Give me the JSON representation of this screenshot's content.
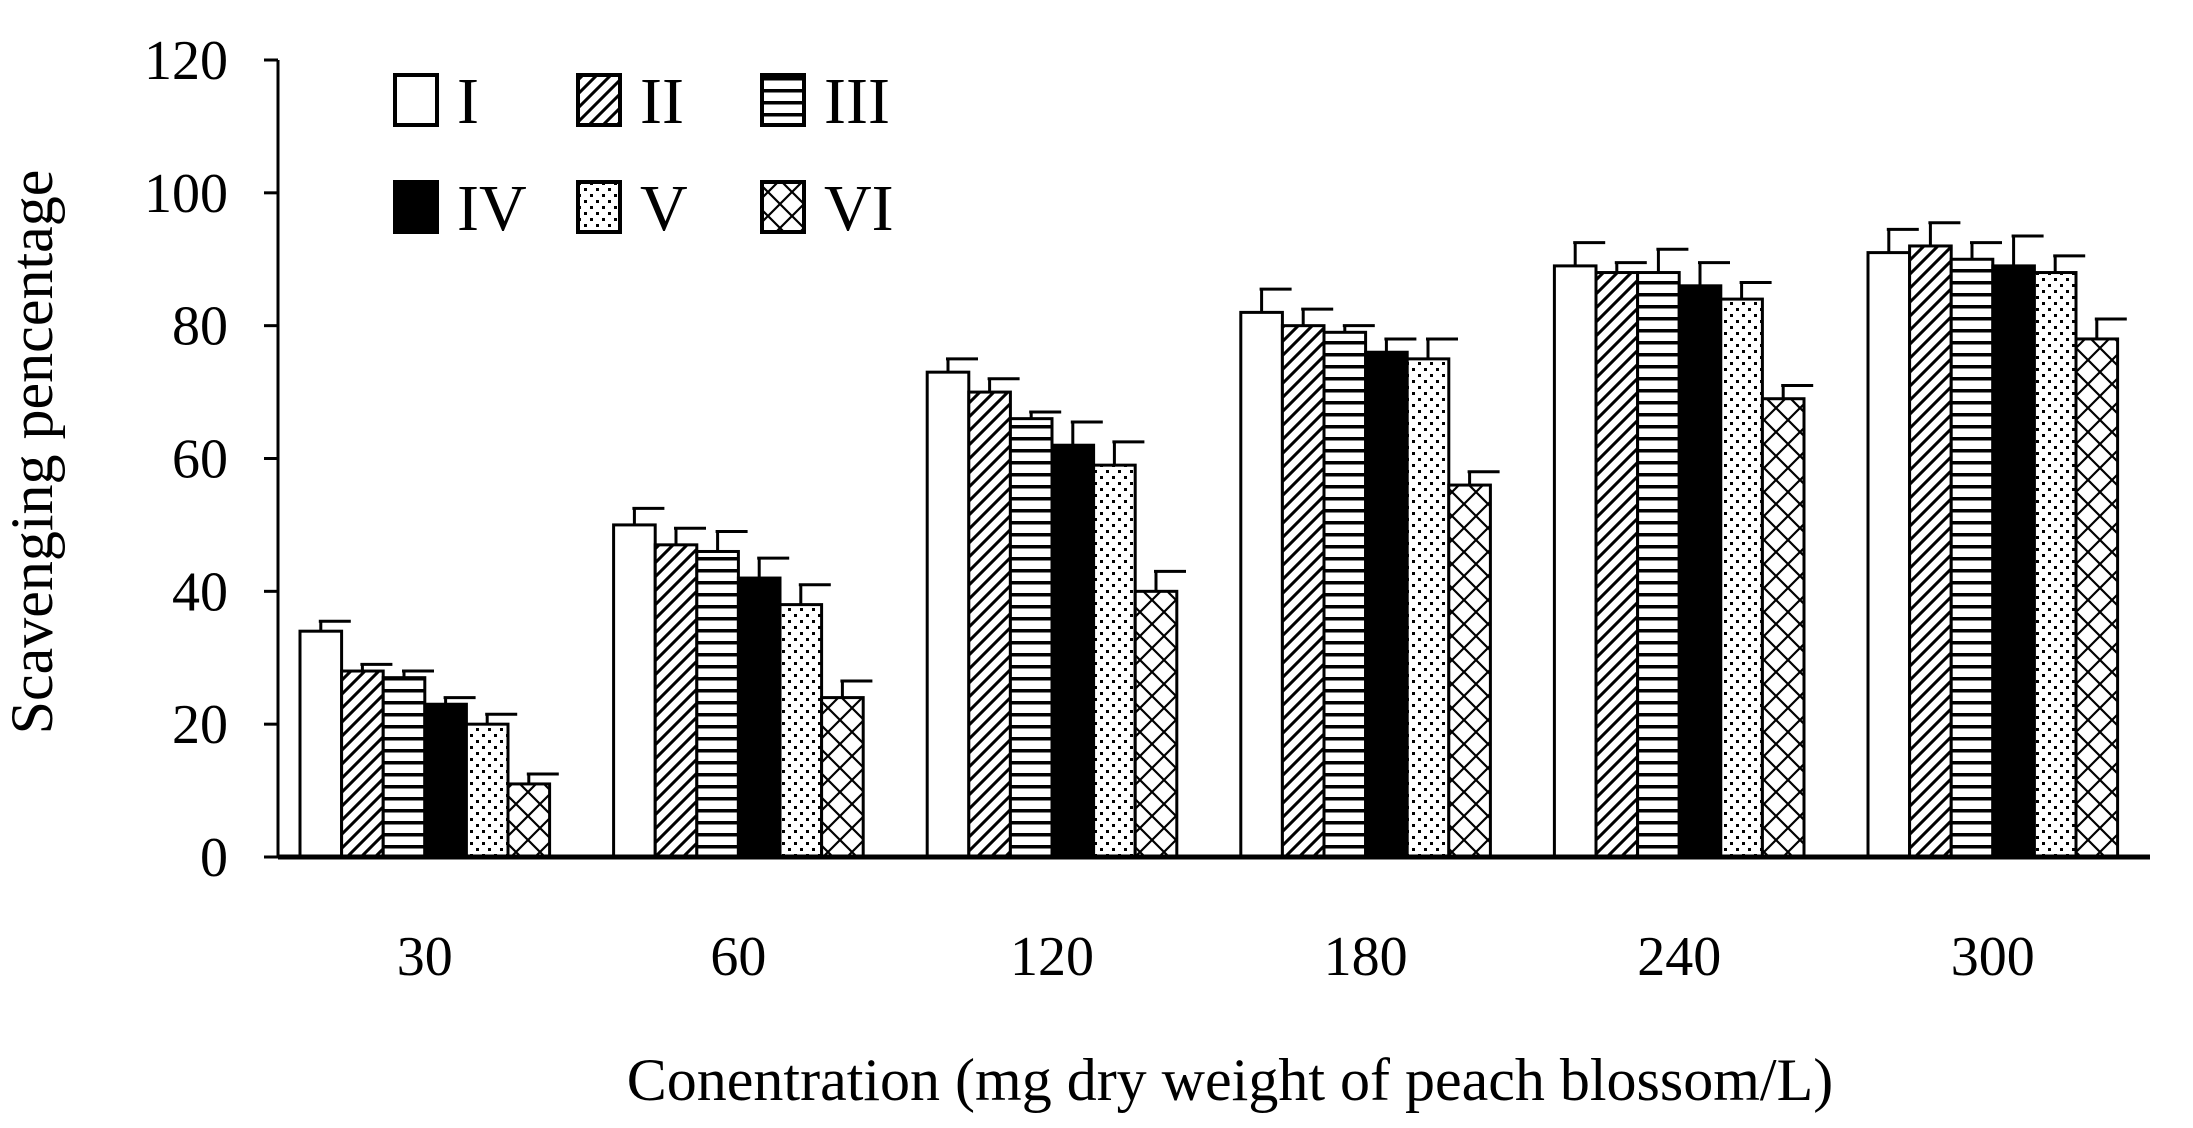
{
  "chart_data": {
    "type": "bar",
    "title": "",
    "xlabel": "Conentration (mg dry weight of peach blossom/L)",
    "ylabel": "Scavenging pencentage",
    "categories": [
      "30",
      "60",
      "120",
      "180",
      "240",
      "300"
    ],
    "ylim": [
      0,
      120
    ],
    "yticks": [
      0,
      20,
      40,
      60,
      80,
      100,
      120
    ],
    "grid": false,
    "legend_position": "top-left",
    "series": [
      {
        "name": "I",
        "pattern": "empty",
        "values": [
          34,
          50,
          73,
          82,
          89,
          91
        ],
        "errors": [
          1.5,
          2.5,
          2.0,
          3.5,
          3.5,
          3.5
        ]
      },
      {
        "name": "II",
        "pattern": "diagonal-hatch",
        "values": [
          28,
          47,
          70,
          80,
          88,
          92
        ],
        "errors": [
          1.0,
          2.5,
          2.0,
          2.5,
          1.5,
          3.5
        ]
      },
      {
        "name": "III",
        "pattern": "horizontal-lines",
        "values": [
          27,
          46,
          66,
          79,
          88,
          90
        ],
        "errors": [
          1.0,
          3.0,
          1.0,
          1.0,
          3.5,
          2.5
        ]
      },
      {
        "name": "IV",
        "pattern": "solid",
        "values": [
          23,
          42,
          62,
          76,
          86,
          89
        ],
        "errors": [
          1.0,
          3.0,
          3.5,
          2.0,
          3.5,
          4.5
        ]
      },
      {
        "name": "V",
        "pattern": "dots",
        "values": [
          20,
          38,
          59,
          75,
          84,
          88
        ],
        "errors": [
          1.5,
          3.0,
          3.5,
          3.0,
          2.5,
          2.5
        ]
      },
      {
        "name": "VI",
        "pattern": "lattice",
        "values": [
          11,
          24,
          40,
          56,
          69,
          78
        ],
        "errors": [
          1.5,
          2.5,
          3.0,
          2.0,
          2.0,
          3.0
        ]
      }
    ]
  }
}
